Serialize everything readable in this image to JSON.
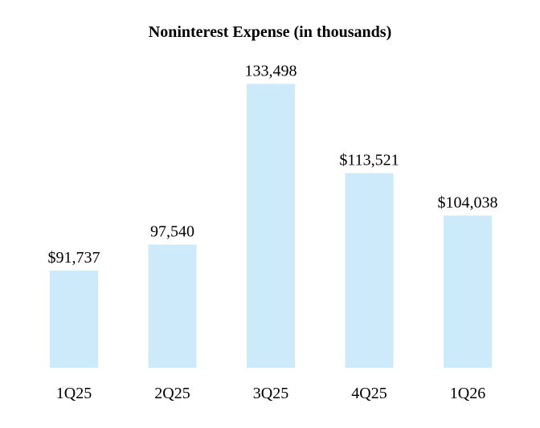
{
  "chart_data": {
    "type": "bar",
    "title": "Noninterest Expense (in thousands)",
    "xlabel": "",
    "ylabel": "",
    "categories": [
      "1Q25",
      "2Q25",
      "3Q25",
      "4Q25",
      "1Q26"
    ],
    "values": [
      91737,
      97540,
      133498,
      113521,
      104038
    ],
    "value_labels": [
      "$91,737",
      "97,540",
      "133,498",
      "$113,521",
      "$104,038"
    ],
    "ylim": [
      70000,
      135000
    ],
    "grid": false,
    "legend": "none",
    "bar_color": "#cdeafa"
  }
}
